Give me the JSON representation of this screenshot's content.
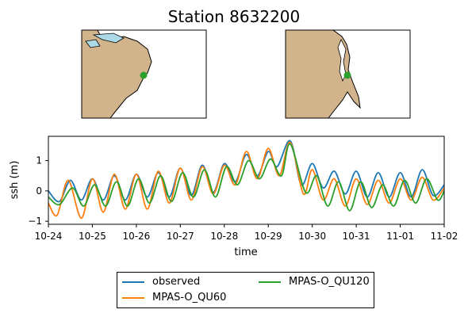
{
  "title": "Station 8632200",
  "chart_data": {
    "type": "line",
    "xlabel": "time",
    "ylabel": "ssh (m)",
    "x_ticks": [
      "10-24",
      "10-25",
      "10-26",
      "10-27",
      "10-28",
      "10-29",
      "10-30",
      "10-31",
      "11-01",
      "11-02"
    ],
    "xlim_days": [
      0,
      9
    ],
    "y_ticks": [
      -1,
      0,
      1
    ],
    "ylim": [
      -1.1,
      1.8
    ],
    "grid": false,
    "legend_position": "below",
    "series": [
      {
        "name": "observed",
        "color": "#1f77b4",
        "points": [
          [
            0,
            0.0
          ],
          [
            0.25,
            -0.35
          ],
          [
            0.5,
            0.35
          ],
          [
            0.75,
            -0.3
          ],
          [
            1.0,
            0.4
          ],
          [
            1.25,
            -0.3
          ],
          [
            1.5,
            0.5
          ],
          [
            1.75,
            -0.3
          ],
          [
            2.0,
            0.55
          ],
          [
            2.25,
            -0.2
          ],
          [
            2.5,
            0.6
          ],
          [
            2.75,
            -0.2
          ],
          [
            3.0,
            0.75
          ],
          [
            3.25,
            -0.15
          ],
          [
            3.5,
            0.85
          ],
          [
            3.75,
            -0.05
          ],
          [
            4.0,
            0.9
          ],
          [
            4.25,
            0.3
          ],
          [
            4.5,
            1.2
          ],
          [
            4.75,
            0.5
          ],
          [
            5.0,
            1.3
          ],
          [
            5.2,
            0.8
          ],
          [
            5.5,
            1.65
          ],
          [
            5.75,
            0.2
          ],
          [
            6.0,
            0.9
          ],
          [
            6.25,
            0.1
          ],
          [
            6.5,
            0.65
          ],
          [
            6.75,
            -0.1
          ],
          [
            7.0,
            0.65
          ],
          [
            7.25,
            -0.2
          ],
          [
            7.5,
            0.6
          ],
          [
            7.75,
            -0.2
          ],
          [
            8.0,
            0.6
          ],
          [
            8.25,
            -0.2
          ],
          [
            8.5,
            0.7
          ],
          [
            8.75,
            -0.15
          ],
          [
            9.0,
            0.2
          ]
        ]
      },
      {
        "name": "MPAS-O_QU60",
        "color": "#ff7f0e",
        "points": [
          [
            0,
            -0.4
          ],
          [
            0.2,
            -0.8
          ],
          [
            0.45,
            0.35
          ],
          [
            0.75,
            -0.9
          ],
          [
            1.0,
            0.4
          ],
          [
            1.25,
            -0.7
          ],
          [
            1.5,
            0.55
          ],
          [
            1.75,
            -0.6
          ],
          [
            2.0,
            0.55
          ],
          [
            2.25,
            -0.6
          ],
          [
            2.5,
            0.65
          ],
          [
            2.75,
            -0.4
          ],
          [
            3.0,
            0.75
          ],
          [
            3.25,
            -0.3
          ],
          [
            3.5,
            0.8
          ],
          [
            3.75,
            -0.1
          ],
          [
            4.0,
            0.85
          ],
          [
            4.25,
            0.2
          ],
          [
            4.5,
            1.3
          ],
          [
            4.75,
            0.4
          ],
          [
            5.0,
            1.4
          ],
          [
            5.25,
            0.5
          ],
          [
            5.5,
            1.6
          ],
          [
            5.8,
            -0.1
          ],
          [
            6.0,
            0.7
          ],
          [
            6.25,
            -0.3
          ],
          [
            6.5,
            0.4
          ],
          [
            6.75,
            -0.5
          ],
          [
            7.0,
            0.4
          ],
          [
            7.25,
            -0.45
          ],
          [
            7.5,
            0.35
          ],
          [
            7.75,
            -0.4
          ],
          [
            8.0,
            0.4
          ],
          [
            8.25,
            -0.3
          ],
          [
            8.5,
            0.45
          ],
          [
            8.75,
            -0.3
          ],
          [
            9.0,
            0.1
          ]
        ]
      },
      {
        "name": "MPAS-O_QU120",
        "color": "#2ca02c",
        "points": [
          [
            0,
            -0.2
          ],
          [
            0.25,
            -0.45
          ],
          [
            0.55,
            0.1
          ],
          [
            0.8,
            -0.5
          ],
          [
            1.05,
            0.2
          ],
          [
            1.3,
            -0.5
          ],
          [
            1.55,
            0.3
          ],
          [
            1.8,
            -0.5
          ],
          [
            2.05,
            0.4
          ],
          [
            2.3,
            -0.4
          ],
          [
            2.55,
            0.5
          ],
          [
            2.8,
            -0.35
          ],
          [
            3.05,
            0.6
          ],
          [
            3.3,
            -0.2
          ],
          [
            3.55,
            0.7
          ],
          [
            3.8,
            -0.2
          ],
          [
            4.05,
            0.8
          ],
          [
            4.3,
            0.2
          ],
          [
            4.55,
            1.0
          ],
          [
            4.8,
            0.4
          ],
          [
            5.05,
            1.05
          ],
          [
            5.3,
            0.5
          ],
          [
            5.5,
            1.55
          ],
          [
            5.85,
            -0.05
          ],
          [
            6.1,
            0.5
          ],
          [
            6.35,
            -0.5
          ],
          [
            6.6,
            0.3
          ],
          [
            6.85,
            -0.65
          ],
          [
            7.1,
            0.3
          ],
          [
            7.35,
            -0.55
          ],
          [
            7.6,
            0.2
          ],
          [
            7.85,
            -0.5
          ],
          [
            8.1,
            0.35
          ],
          [
            8.35,
            -0.4
          ],
          [
            8.6,
            0.4
          ],
          [
            8.85,
            -0.3
          ],
          [
            9.0,
            0.0
          ]
        ]
      }
    ]
  }
}
